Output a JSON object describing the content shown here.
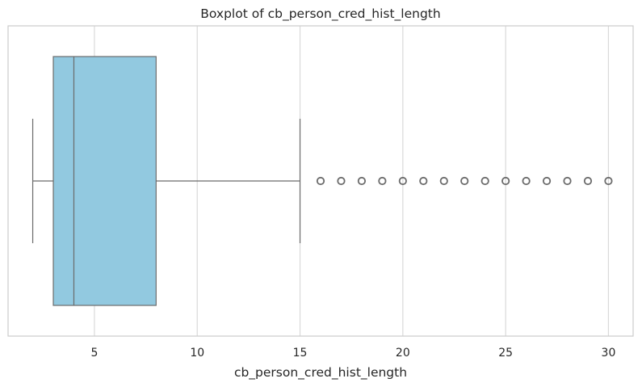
{
  "chart_data": {
    "type": "boxplot",
    "title": "Boxplot of cb_person_cred_hist_length",
    "xlabel": "cb_person_cred_hist_length",
    "ylabel": "",
    "orientation": "horizontal",
    "xlim": [
      0.8,
      31.2
    ],
    "xticks": [
      5,
      10,
      15,
      20,
      25,
      30
    ],
    "grid": true,
    "box": {
      "whisker_low": 2,
      "q1": 3,
      "median": 4,
      "q3": 8,
      "whisker_high": 15,
      "outliers": [
        16,
        17,
        18,
        19,
        20,
        21,
        22,
        23,
        24,
        25,
        26,
        27,
        28,
        29,
        30
      ]
    },
    "colors": {
      "box_fill": "#92C9E0",
      "line": "#6b6b6b",
      "grid": "#d9d9d9",
      "frame": "#cccccc"
    }
  }
}
